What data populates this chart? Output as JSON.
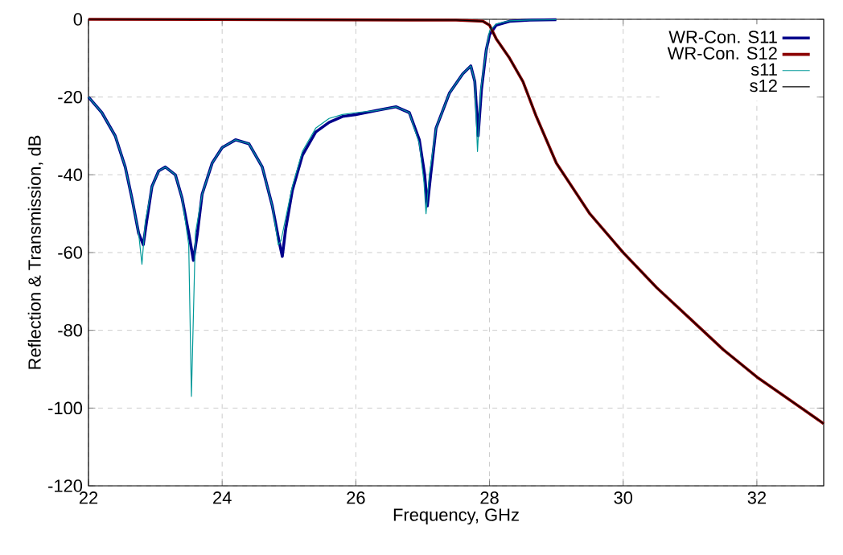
{
  "chart_data": {
    "type": "line",
    "xlabel": "Frequency, GHz",
    "ylabel": "Reflection & Transmission, dB",
    "xlim": [
      22,
      33
    ],
    "ylim": [
      -120,
      0
    ],
    "xticks": [
      22,
      24,
      26,
      28,
      30,
      32
    ],
    "yticks": [
      -120,
      -100,
      -80,
      -60,
      -40,
      -20,
      0
    ],
    "grid": true,
    "legend": "top right",
    "marker": "none",
    "line_style": "solid",
    "series": [
      {
        "name": "WR-Con. S11",
        "color": "#00008b",
        "x": [
          22,
          22.2,
          22.4,
          22.55,
          22.65,
          22.75,
          22.82,
          22.87,
          22.95,
          23.05,
          23.15,
          23.3,
          23.4,
          23.5,
          23.57,
          23.63,
          23.7,
          23.85,
          24.0,
          24.2,
          24.4,
          24.6,
          24.75,
          24.85,
          24.9,
          24.95,
          25.05,
          25.2,
          25.4,
          25.6,
          25.8,
          26.0,
          26.3,
          26.6,
          26.8,
          26.95,
          27.03,
          27.07,
          27.12,
          27.2,
          27.4,
          27.6,
          27.72,
          27.78,
          27.83,
          27.88,
          27.95,
          28.0,
          28.1,
          28.3,
          28.6,
          29.0
        ],
        "values": [
          -20,
          -24,
          -30,
          -38,
          -46,
          -55,
          -58,
          -52,
          -43,
          -39,
          -38,
          -40,
          -46,
          -55,
          -62,
          -55,
          -45,
          -37,
          -33,
          -31,
          -32,
          -38,
          -48,
          -57,
          -61,
          -54,
          -44,
          -35,
          -29,
          -26.5,
          -25,
          -24.5,
          -23.5,
          -22.5,
          -24,
          -31,
          -40,
          -48,
          -40,
          -28,
          -19,
          -14,
          -12,
          -16,
          -30,
          -18,
          -8,
          -4,
          -1.5,
          -0.5,
          -0.2,
          -0.1
        ]
      },
      {
        "name": "WR-Con. S12",
        "color": "#8b0000",
        "x": [
          22,
          27.5,
          27.9,
          28.0,
          28.1,
          28.3,
          28.5,
          28.7,
          29.0,
          29.5,
          30.0,
          30.5,
          31.0,
          31.5,
          32.0,
          32.5,
          33.0
        ],
        "values": [
          0,
          -0.2,
          -0.5,
          -1.5,
          -5,
          -10,
          -16,
          -25,
          -37,
          -50,
          -60,
          -69,
          -77,
          -85,
          -92,
          -98,
          -104
        ]
      },
      {
        "name": "s11",
        "color": "#009999",
        "x": [
          22,
          22.2,
          22.4,
          22.55,
          22.65,
          22.75,
          22.8,
          22.85,
          22.95,
          23.05,
          23.15,
          23.3,
          23.4,
          23.5,
          23.54,
          23.6,
          23.7,
          23.85,
          24.0,
          24.2,
          24.4,
          24.6,
          24.75,
          24.84,
          24.88,
          24.94,
          25.05,
          25.2,
          25.4,
          25.6,
          25.8,
          26.0,
          26.3,
          26.6,
          26.8,
          26.95,
          27.02,
          27.05,
          27.1,
          27.2,
          27.4,
          27.6,
          27.72,
          27.78,
          27.82,
          27.87,
          27.95,
          28.0,
          28.1,
          28.3,
          28.6,
          29.0
        ],
        "values": [
          -20,
          -24,
          -30,
          -38,
          -46,
          -55,
          -63,
          -52,
          -43,
          -39,
          -38,
          -40,
          -46,
          -58,
          -97,
          -55,
          -45,
          -37,
          -33,
          -31,
          -32,
          -38,
          -48,
          -58,
          -57,
          -52,
          -43,
          -34,
          -28,
          -25.5,
          -24.5,
          -24,
          -23.5,
          -22.5,
          -24,
          -32,
          -42,
          -50,
          -40,
          -28,
          -19,
          -14,
          -12,
          -16,
          -34,
          -18,
          -8,
          -3,
          -1.2,
          -0.4,
          -0.2,
          -0.1
        ]
      },
      {
        "name": "s12",
        "color": "#000000",
        "x": [
          22,
          27.5,
          27.9,
          28.0,
          28.1,
          28.3,
          28.5,
          28.7,
          29.0,
          29.5,
          30.0,
          30.5,
          31.0,
          31.5,
          32.0,
          32.5,
          33.0
        ],
        "values": [
          0,
          -0.2,
          -0.5,
          -1.5,
          -5,
          -10,
          -16,
          -25,
          -37,
          -50,
          -60,
          -69,
          -77,
          -85,
          -92,
          -98,
          -104
        ]
      }
    ]
  }
}
